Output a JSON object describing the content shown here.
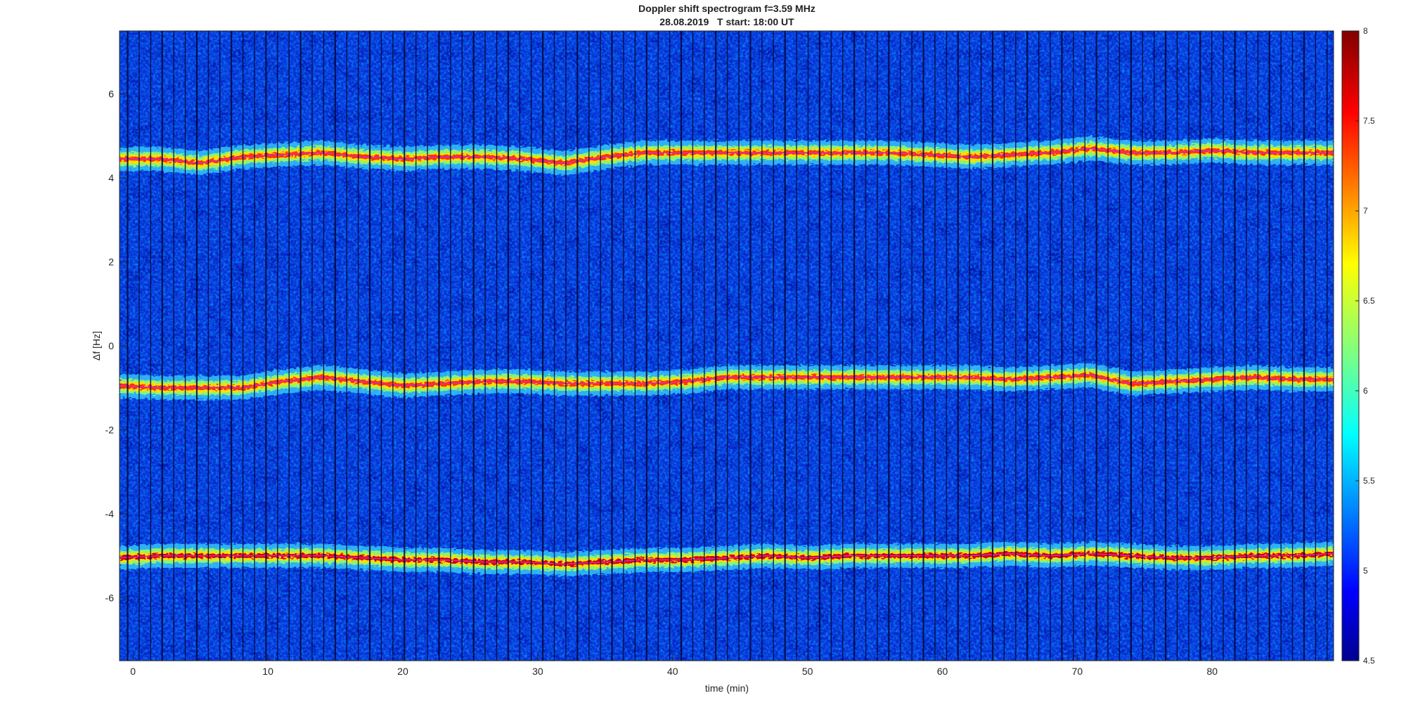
{
  "chart_data": {
    "type": "heatmap",
    "title": "Doppler shift spectrogram f=3.59 MHz",
    "subtitle": "28.08.2019   T start: 18:00 UT",
    "xlabel": "time (min)",
    "ylabel": "Δf [Hz]",
    "xlim": [
      -1,
      89
    ],
    "ylim": [
      -7.5,
      7.5
    ],
    "x_ticks": [
      0,
      10,
      20,
      30,
      40,
      50,
      60,
      70,
      80
    ],
    "y_ticks": [
      -6,
      -4,
      -2,
      0,
      2,
      4,
      6
    ],
    "colorbar": {
      "colormap": "jet",
      "range": [
        4.5,
        8
      ],
      "ticks": [
        4.5,
        5,
        5.5,
        6,
        6.5,
        7,
        7.5,
        8
      ]
    },
    "traces": [
      {
        "x": [
          -1,
          2,
          5,
          8,
          11,
          14,
          17,
          20,
          23,
          26,
          29,
          32,
          35,
          38,
          41,
          44,
          47,
          50,
          53,
          56,
          59,
          62,
          65,
          68,
          71,
          74,
          77,
          80,
          83,
          86,
          89
        ],
        "y": [
          4.45,
          4.45,
          4.35,
          4.5,
          4.55,
          4.6,
          4.5,
          4.45,
          4.5,
          4.5,
          4.45,
          4.35,
          4.5,
          4.6,
          4.6,
          4.6,
          4.6,
          4.6,
          4.6,
          4.6,
          4.55,
          4.5,
          4.55,
          4.6,
          4.7,
          4.6,
          4.6,
          4.65,
          4.6,
          4.6,
          4.6
        ],
        "intensity": 7.6
      },
      {
        "x": [
          -1,
          2,
          5,
          8,
          11,
          14,
          17,
          20,
          23,
          26,
          29,
          32,
          35,
          38,
          41,
          44,
          47,
          50,
          53,
          56,
          59,
          62,
          65,
          68,
          71,
          74,
          77,
          80,
          83,
          86,
          89
        ],
        "y": [
          -0.95,
          -1.0,
          -1.0,
          -1.0,
          -0.85,
          -0.75,
          -0.85,
          -0.95,
          -0.9,
          -0.85,
          -0.85,
          -0.9,
          -0.9,
          -0.9,
          -0.85,
          -0.75,
          -0.75,
          -0.75,
          -0.75,
          -0.75,
          -0.75,
          -0.75,
          -0.8,
          -0.75,
          -0.7,
          -0.9,
          -0.85,
          -0.8,
          -0.75,
          -0.8,
          -0.8
        ],
        "intensity": 7.6
      },
      {
        "x": [
          -1,
          2,
          5,
          8,
          11,
          14,
          17,
          20,
          23,
          26,
          29,
          32,
          35,
          38,
          41,
          44,
          47,
          50,
          53,
          56,
          59,
          62,
          65,
          68,
          71,
          74,
          77,
          80,
          83,
          86,
          89
        ],
        "y": [
          -5.05,
          -5.0,
          -5.0,
          -5.0,
          -5.0,
          -5.0,
          -5.05,
          -5.1,
          -5.1,
          -5.15,
          -5.15,
          -5.2,
          -5.15,
          -5.1,
          -5.1,
          -5.05,
          -5.0,
          -5.05,
          -5.0,
          -5.0,
          -5.0,
          -5.0,
          -4.95,
          -5.0,
          -4.95,
          -5.0,
          -5.05,
          -5.05,
          -5.0,
          -5.0,
          -4.95
        ],
        "intensity": 7.9
      }
    ]
  }
}
